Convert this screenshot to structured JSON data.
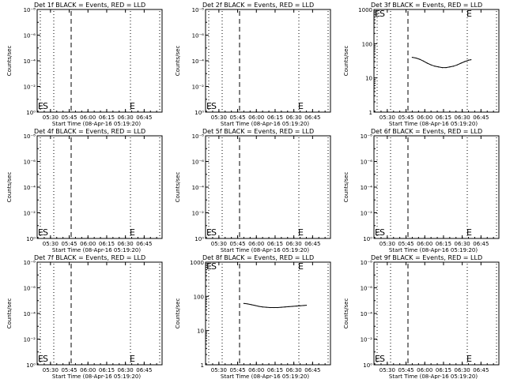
{
  "x_tick_labels": [
    "05:30",
    "05:45",
    "06:00",
    "06:15",
    "06:30",
    "06:45"
  ],
  "xlabel": "Start Time (08-Apr-16 05:19:20)",
  "ylabel": "Counts/sec",
  "log_ticks_exp": [
    "10⁻⁸",
    "10⁻⁶",
    "10⁻⁴",
    "10⁻²",
    "10⁰"
  ],
  "log_ticks_plain": [
    "1000",
    "100",
    "10",
    "1"
  ],
  "marker_s": "S",
  "marker_e": "E",
  "chart_data": [
    {
      "type": "line",
      "title": "Det 1f BLACK = Events, RED = LLD",
      "yscale": "exponent",
      "series": []
    },
    {
      "type": "line",
      "title": "Det 2f BLACK = Events, RED = LLD",
      "yscale": "exponent",
      "series": []
    },
    {
      "type": "line",
      "title": "Det 3f BLACK = Events, RED = LLD",
      "yscale": "plain",
      "ylim": [
        1,
        1000
      ],
      "series": [
        {
          "x": [
            "05:50",
            "05:53",
            "05:56",
            "05:59",
            "06:02",
            "06:05",
            "06:08",
            "06:11",
            "06:14",
            "06:17",
            "06:20",
            "06:23",
            "06:26",
            "06:29",
            "06:32",
            "06:35",
            "06:37"
          ],
          "values": [
            40,
            38,
            35,
            31,
            27,
            24,
            22,
            21,
            20,
            20,
            21,
            22,
            24,
            27,
            30,
            33,
            34
          ]
        }
      ]
    },
    {
      "type": "line",
      "title": "Det 4f BLACK = Events, RED = LLD",
      "yscale": "exponent",
      "series": []
    },
    {
      "type": "line",
      "title": "Det 5f BLACK = Events, RED = LLD",
      "yscale": "exponent",
      "series": []
    },
    {
      "type": "line",
      "title": "Det 6f BLACK = Events, RED = LLD",
      "yscale": "exponent",
      "series": []
    },
    {
      "type": "line",
      "title": "Det 7f BLACK = Events, RED = LLD",
      "yscale": "exponent",
      "series": []
    },
    {
      "type": "line",
      "title": "Det 8f BLACK = Events, RED = LLD",
      "yscale": "plain",
      "ylim": [
        1,
        1000
      ],
      "series": [
        {
          "x": [
            "05:50",
            "05:53",
            "05:56",
            "05:59",
            "06:02",
            "06:05",
            "06:08",
            "06:11",
            "06:14",
            "06:17",
            "06:20",
            "06:23",
            "06:26",
            "06:29",
            "06:32",
            "06:35",
            "06:38",
            "06:40"
          ],
          "values": [
            62,
            60,
            57,
            54,
            51,
            49,
            48,
            47,
            47,
            47,
            48,
            49,
            50,
            51,
            52,
            53,
            54,
            55
          ]
        }
      ]
    },
    {
      "type": "line",
      "title": "Det 9f BLACK = Events, RED = LLD",
      "yscale": "exponent",
      "series": []
    }
  ]
}
